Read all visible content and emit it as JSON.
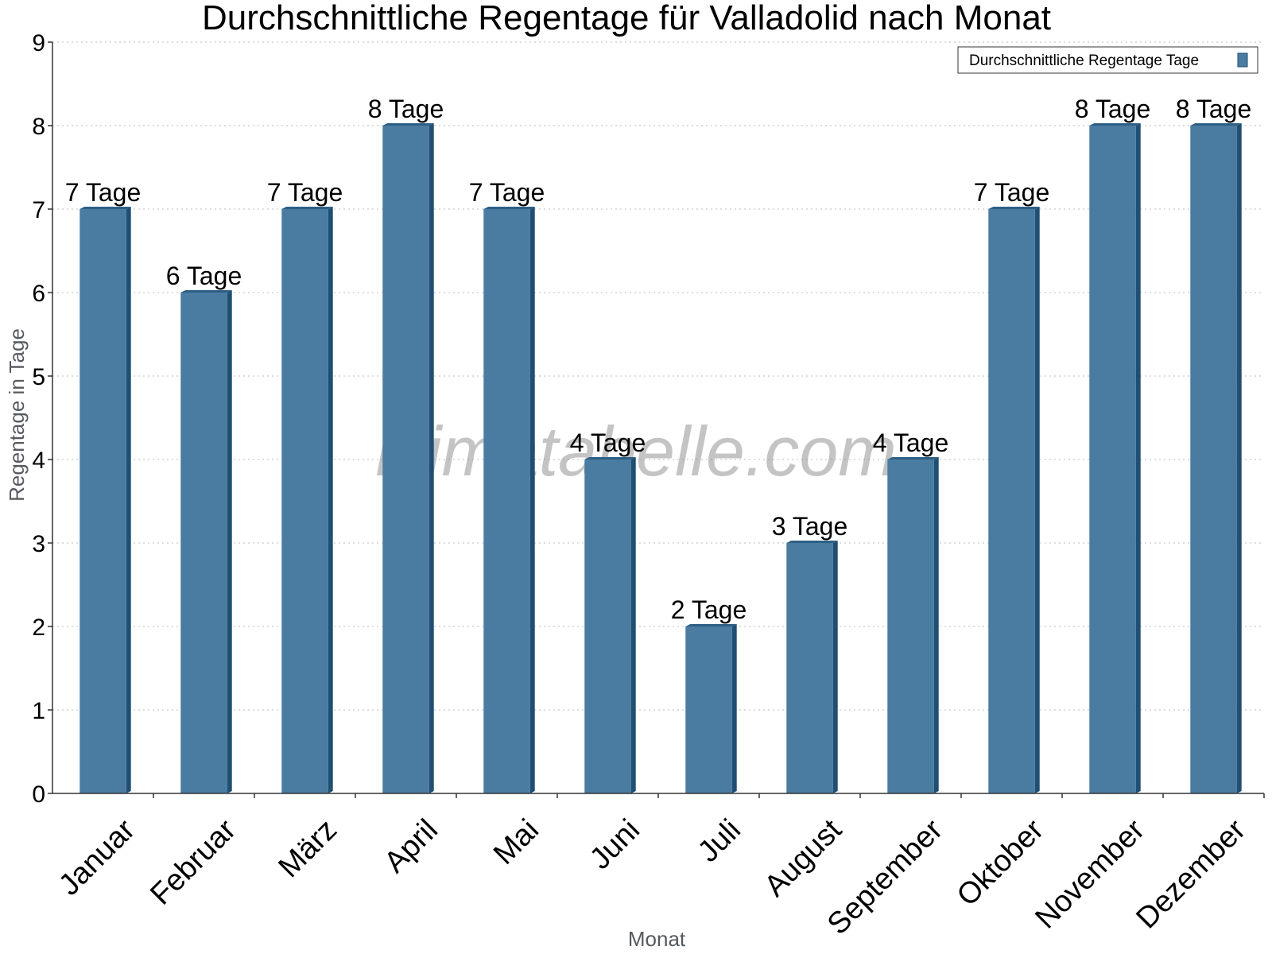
{
  "chart_data": {
    "type": "bar",
    "title": "Durchschnittliche Regentage für Valladolid nach Monat",
    "xlabel": "Monat",
    "ylabel": "Regentage in Tage",
    "categories": [
      "Januar",
      "Februar",
      "März",
      "April",
      "Mai",
      "Juni",
      "Juli",
      "August",
      "September",
      "Oktober",
      "November",
      "Dezember"
    ],
    "series": [
      {
        "name": "Durchschnittliche Regentage Tage",
        "values": [
          7,
          6,
          7,
          8,
          7,
          4,
          2,
          3,
          4,
          7,
          8,
          8
        ]
      }
    ],
    "data_labels": [
      "7 Tage",
      "6 Tage",
      "7 Tage",
      "8 Tage",
      "7 Tage",
      "4 Tage",
      "2 Tage",
      "3 Tage",
      "4 Tage",
      "7 Tage",
      "8 Tage",
      "8 Tage"
    ],
    "ylim": [
      0,
      9
    ],
    "yticks": [
      0,
      1,
      2,
      3,
      4,
      5,
      6,
      7,
      8,
      9
    ],
    "grid": true,
    "legend_position": "top-right",
    "colors": {
      "bar": "#4a7ba0",
      "bar_side": "#1f4f72",
      "bar_top": "#2d5f85"
    },
    "watermark": "klimatabelle.com"
  }
}
